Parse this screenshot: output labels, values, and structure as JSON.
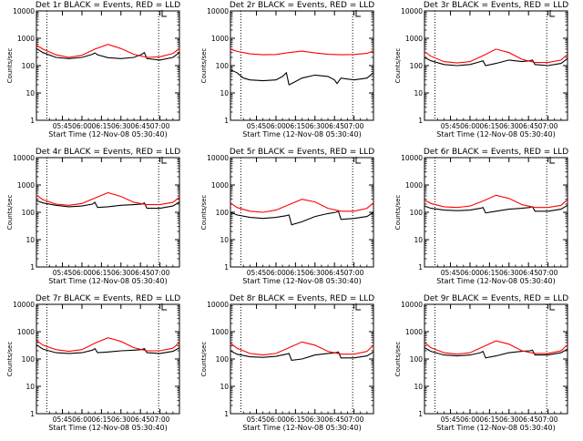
{
  "figure": {
    "ylabel": "Counts/sec",
    "xlabel": "Start Time (12-Nov-08 05:30:40)",
    "x_ticks": [
      "05:45",
      "06:00",
      "06:15",
      "06:30",
      "06:45",
      "07:00"
    ],
    "y_ticks": [
      "1",
      "10",
      "100",
      "1000",
      "10000"
    ],
    "series_colors": {
      "events": "#000000",
      "lld": "#ff0000"
    }
  },
  "chart_data": [
    {
      "type": "line",
      "title": "Det 1r BLACK = Events, RED = LLD",
      "xlabel": "Start Time (12-Nov-08 05:30:40)",
      "ylabel": "Counts/sec",
      "y_scale": "log",
      "ylim": [
        1,
        10000
      ],
      "xlim_minutes": [
        -5,
        105
      ],
      "marker_lines_minutes": [
        3,
        89
      ],
      "series": [
        {
          "name": "Events",
          "color": "#000000",
          "x": [
            -5,
            0,
            10,
            20,
            30,
            38,
            40,
            42,
            50,
            60,
            70,
            76,
            78,
            80,
            90,
            100,
            105
          ],
          "y": [
            420,
            300,
            200,
            180,
            200,
            260,
            290,
            250,
            195,
            180,
            200,
            260,
            300,
            180,
            160,
            200,
            300
          ]
        },
        {
          "name": "LLD",
          "color": "#ff0000",
          "x": [
            -5,
            0,
            10,
            20,
            30,
            40,
            50,
            60,
            70,
            80,
            90,
            100,
            105
          ],
          "y": [
            560,
            400,
            250,
            200,
            240,
            400,
            600,
            420,
            260,
            200,
            210,
            280,
            420
          ]
        }
      ]
    },
    {
      "type": "line",
      "title": "Det 2r BLACK = Events, RED = LLD",
      "xlabel": "Start Time (12-Nov-08 05:30:40)",
      "ylabel": "Counts/sec",
      "y_scale": "log",
      "ylim": [
        1,
        10000
      ],
      "xlim_minutes": [
        -5,
        105
      ],
      "marker_lines_minutes": [
        3,
        89
      ],
      "series": [
        {
          "name": "Events",
          "color": "#000000",
          "x": [
            -5,
            0,
            5,
            10,
            20,
            30,
            35,
            38,
            40,
            42,
            50,
            60,
            70,
            75,
            77,
            80,
            90,
            100,
            105
          ],
          "y": [
            70,
            55,
            35,
            30,
            28,
            30,
            40,
            55,
            20,
            22,
            35,
            45,
            40,
            30,
            22,
            35,
            30,
            35,
            55
          ]
        },
        {
          "name": "LLD",
          "color": "#ff0000",
          "x": [
            -5,
            0,
            10,
            20,
            30,
            40,
            50,
            60,
            70,
            80,
            90,
            100,
            105
          ],
          "y": [
            400,
            330,
            270,
            250,
            255,
            300,
            340,
            290,
            260,
            250,
            255,
            280,
            350
          ]
        }
      ]
    },
    {
      "type": "line",
      "title": "Det 3r BLACK = Events, RED = LLD",
      "xlabel": "Start Time (12-Nov-08 05:30:40)",
      "ylabel": "Counts/sec",
      "y_scale": "log",
      "ylim": [
        1,
        10000
      ],
      "xlim_minutes": [
        -5,
        105
      ],
      "marker_lines_minutes": [
        3,
        89
      ],
      "series": [
        {
          "name": "Events",
          "color": "#000000",
          "x": [
            -5,
            0,
            10,
            20,
            30,
            38,
            40,
            42,
            50,
            60,
            70,
            76,
            78,
            80,
            90,
            100,
            105
          ],
          "y": [
            200,
            150,
            110,
            100,
            110,
            140,
            150,
            100,
            120,
            160,
            140,
            150,
            160,
            110,
            100,
            120,
            180
          ]
        },
        {
          "name": "LLD",
          "color": "#ff0000",
          "x": [
            -5,
            0,
            10,
            20,
            30,
            40,
            50,
            60,
            70,
            80,
            90,
            100,
            105
          ],
          "y": [
            320,
            220,
            140,
            125,
            140,
            230,
            400,
            300,
            170,
            130,
            130,
            160,
            260
          ]
        }
      ]
    },
    {
      "type": "line",
      "title": "Det 4r BLACK = Events, RED = LLD",
      "xlabel": "Start Time (12-Nov-08 05:30:40)",
      "ylabel": "Counts/sec",
      "y_scale": "log",
      "ylim": [
        1,
        10000
      ],
      "xlim_minutes": [
        -5,
        105
      ],
      "marker_lines_minutes": [
        3,
        89
      ],
      "series": [
        {
          "name": "Events",
          "color": "#000000",
          "x": [
            -5,
            0,
            10,
            20,
            30,
            38,
            40,
            42,
            50,
            60,
            70,
            76,
            78,
            80,
            90,
            100,
            105
          ],
          "y": [
            270,
            220,
            180,
            160,
            170,
            200,
            230,
            150,
            160,
            180,
            190,
            200,
            220,
            140,
            140,
            170,
            240
          ]
        },
        {
          "name": "LLD",
          "color": "#ff0000",
          "x": [
            -5,
            0,
            10,
            20,
            30,
            40,
            50,
            60,
            70,
            80,
            90,
            100,
            105
          ],
          "y": [
            420,
            290,
            200,
            180,
            210,
            330,
            520,
            380,
            230,
            190,
            190,
            230,
            360
          ]
        }
      ]
    },
    {
      "type": "line",
      "title": "Det 5r BLACK = Events, RED = LLD",
      "xlabel": "Start Time (12-Nov-08 05:30:40)",
      "ylabel": "Counts/sec",
      "y_scale": "log",
      "ylim": [
        1,
        10000
      ],
      "xlim_minutes": [
        -5,
        105
      ],
      "marker_lines_minutes": [
        3,
        89
      ],
      "series": [
        {
          "name": "Events",
          "color": "#000000",
          "x": [
            -5,
            0,
            10,
            20,
            30,
            38,
            40,
            42,
            50,
            60,
            70,
            76,
            78,
            80,
            90,
            100,
            105
          ],
          "y": [
            100,
            80,
            65,
            60,
            65,
            75,
            80,
            35,
            45,
            70,
            90,
            100,
            110,
            55,
            60,
            70,
            100
          ]
        },
        {
          "name": "LLD",
          "color": "#ff0000",
          "x": [
            -5,
            0,
            10,
            20,
            30,
            40,
            50,
            60,
            70,
            80,
            90,
            100,
            105
          ],
          "y": [
            220,
            150,
            110,
            100,
            120,
            190,
            300,
            240,
            140,
            110,
            110,
            140,
            220
          ]
        }
      ]
    },
    {
      "type": "line",
      "title": "Det 6r BLACK = Events, RED = LLD",
      "xlabel": "Start Time (12-Nov-08 05:30:40)",
      "ylabel": "Counts/sec",
      "y_scale": "log",
      "ylim": [
        1,
        10000
      ],
      "xlim_minutes": [
        -5,
        105
      ],
      "marker_lines_minutes": [
        3,
        89
      ],
      "series": [
        {
          "name": "Events",
          "color": "#000000",
          "x": [
            -5,
            0,
            10,
            20,
            30,
            38,
            40,
            42,
            50,
            60,
            70,
            76,
            78,
            80,
            90,
            100,
            105
          ],
          "y": [
            170,
            140,
            120,
            115,
            120,
            140,
            150,
            95,
            110,
            130,
            140,
            150,
            160,
            110,
            110,
            130,
            180
          ]
        },
        {
          "name": "LLD",
          "color": "#ff0000",
          "x": [
            -5,
            0,
            10,
            20,
            30,
            40,
            50,
            60,
            70,
            80,
            90,
            100,
            105
          ],
          "y": [
            280,
            210,
            160,
            150,
            170,
            260,
            420,
            320,
            190,
            150,
            150,
            180,
            290
          ]
        }
      ]
    },
    {
      "type": "line",
      "title": "Det 7r BLACK = Events, RED = LLD",
      "xlabel": "Start Time (12-Nov-08 05:30:40)",
      "ylabel": "Counts/sec",
      "y_scale": "log",
      "ylim": [
        1,
        10000
      ],
      "xlim_minutes": [
        -5,
        105
      ],
      "marker_lines_minutes": [
        3,
        89
      ],
      "series": [
        {
          "name": "Events",
          "color": "#000000",
          "x": [
            -5,
            0,
            10,
            20,
            30,
            38,
            40,
            42,
            50,
            60,
            70,
            76,
            78,
            80,
            90,
            100,
            105
          ],
          "y": [
            330,
            230,
            170,
            160,
            170,
            210,
            240,
            170,
            180,
            200,
            210,
            220,
            240,
            170,
            160,
            190,
            260
          ]
        },
        {
          "name": "LLD",
          "color": "#ff0000",
          "x": [
            -5,
            0,
            10,
            20,
            30,
            40,
            50,
            60,
            70,
            80,
            90,
            100,
            105
          ],
          "y": [
            480,
            320,
            220,
            190,
            220,
            380,
            600,
            440,
            260,
            200,
            200,
            250,
            400
          ]
        }
      ]
    },
    {
      "type": "line",
      "title": "Det 8r BLACK = Events, RED = LLD",
      "xlabel": "Start Time (12-Nov-08 05:30:40)",
      "ylabel": "Counts/sec",
      "y_scale": "log",
      "ylim": [
        1,
        10000
      ],
      "xlim_minutes": [
        -5,
        105
      ],
      "marker_lines_minutes": [
        3,
        89
      ],
      "series": [
        {
          "name": "Events",
          "color": "#000000",
          "x": [
            -5,
            0,
            10,
            20,
            30,
            38,
            40,
            42,
            50,
            60,
            70,
            76,
            78,
            80,
            90,
            100,
            105
          ],
          "y": [
            200,
            150,
            120,
            115,
            125,
            150,
            160,
            90,
            100,
            140,
            160,
            170,
            180,
            110,
            110,
            130,
            180
          ]
        },
        {
          "name": "LLD",
          "color": "#ff0000",
          "x": [
            -5,
            0,
            10,
            20,
            30,
            40,
            50,
            60,
            70,
            80,
            90,
            100,
            105
          ],
          "y": [
            380,
            250,
            160,
            140,
            160,
            260,
            420,
            320,
            190,
            150,
            150,
            190,
            320
          ]
        }
      ]
    },
    {
      "type": "line",
      "title": "Det 9r BLACK = Events, RED = LLD",
      "xlabel": "Start Time (12-Nov-08 05:30:40)",
      "ylabel": "Counts/sec",
      "y_scale": "log",
      "ylim": [
        1,
        10000
      ],
      "xlim_minutes": [
        -5,
        105
      ],
      "marker_lines_minutes": [
        3,
        89
      ],
      "series": [
        {
          "name": "Events",
          "color": "#000000",
          "x": [
            -5,
            0,
            10,
            20,
            30,
            38,
            40,
            42,
            50,
            60,
            70,
            76,
            78,
            80,
            90,
            100,
            105
          ],
          "y": [
            260,
            190,
            140,
            130,
            140,
            170,
            190,
            110,
            130,
            170,
            190,
            200,
            210,
            140,
            140,
            170,
            230
          ]
        },
        {
          "name": "LLD",
          "color": "#ff0000",
          "x": [
            -5,
            0,
            10,
            20,
            30,
            40,
            50,
            60,
            70,
            80,
            90,
            100,
            105
          ],
          "y": [
            400,
            260,
            170,
            150,
            170,
            280,
            460,
            350,
            200,
            160,
            160,
            200,
            330
          ]
        }
      ]
    }
  ]
}
